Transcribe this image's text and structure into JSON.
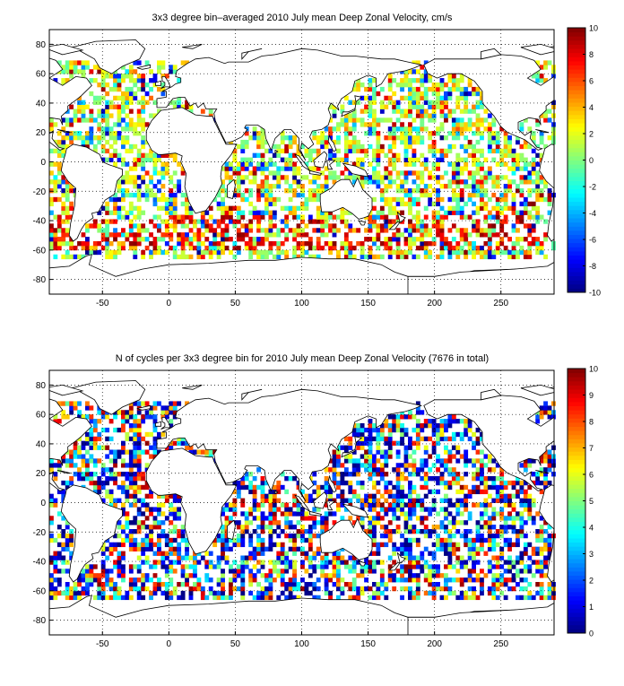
{
  "chart_data": [
    {
      "type": "heatmap",
      "title": "3x3 degree bin–averaged 2010 July mean Deep Zonal Velocity, cm/s",
      "xlim": [
        -90,
        290
      ],
      "ylim": [
        -90,
        90
      ],
      "xticks": [
        -50,
        0,
        50,
        100,
        150,
        200,
        250
      ],
      "yticks": [
        80,
        60,
        40,
        20,
        0,
        -20,
        -40,
        -60,
        -80
      ],
      "grid": true,
      "colorbar": {
        "min": -10,
        "max": 10,
        "colormap": "jet",
        "ticks": [
          10,
          8,
          6,
          4,
          2,
          0,
          -2,
          -4,
          -6,
          -8,
          -10
        ]
      },
      "bin_size_deg": 3
    },
    {
      "type": "heatmap",
      "title": "N of cycles per 3x3 degree bin for 2010 July mean Deep Zonal Velocity (7676 in total)",
      "xlim": [
        -90,
        290
      ],
      "ylim": [
        -90,
        90
      ],
      "xticks": [
        -50,
        0,
        50,
        100,
        150,
        200,
        250
      ],
      "yticks": [
        80,
        60,
        40,
        20,
        0,
        -20,
        -40,
        -60,
        -80
      ],
      "grid": true,
      "colorbar": {
        "min": 0,
        "max": 10,
        "colormap": "jet",
        "ticks": [
          10,
          9,
          8,
          7,
          6,
          5,
          4,
          3,
          2,
          1,
          0
        ]
      },
      "bin_size_deg": 3,
      "total_cycles": 7676
    }
  ]
}
